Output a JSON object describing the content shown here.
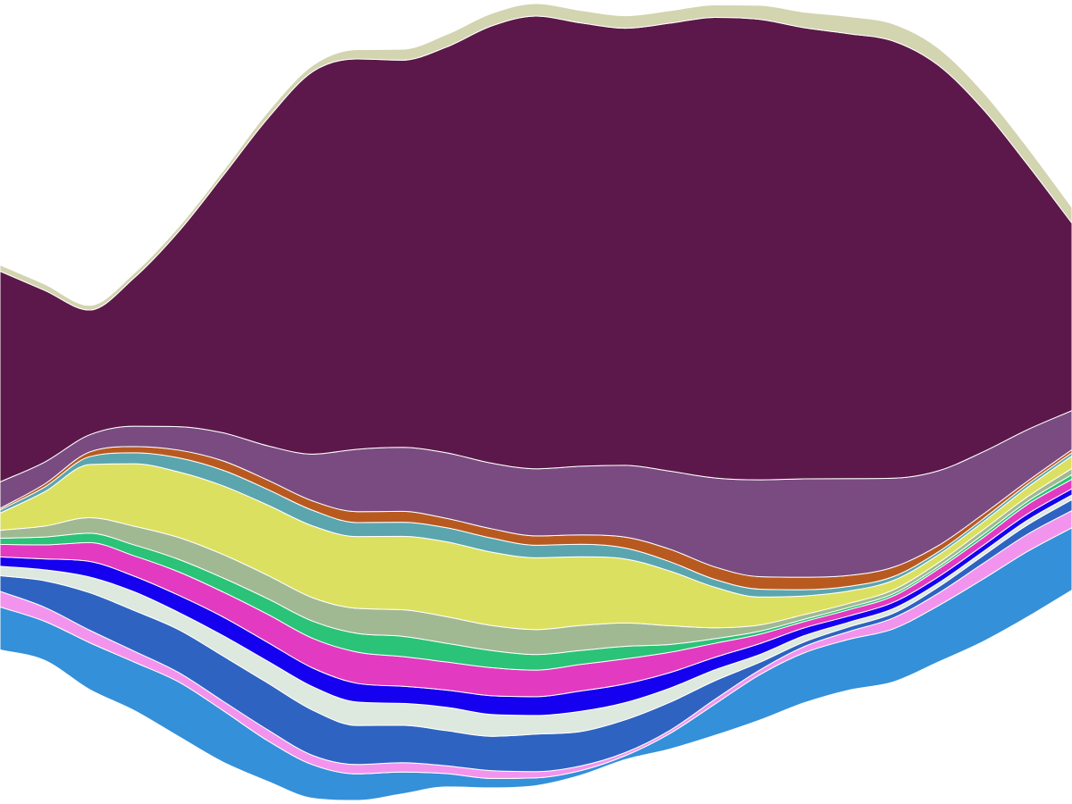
{
  "chart_data": {
    "type": "area",
    "subtype": "streamgraph",
    "baseline": "wiggle",
    "curve": "smooth",
    "title": "",
    "xlabel": "",
    "ylabel": "",
    "axes_visible": false,
    "grid": false,
    "legend": "none",
    "x": [
      0,
      1,
      2,
      3,
      4,
      5,
      6,
      7,
      8,
      9,
      10,
      11,
      12,
      13,
      14,
      15,
      16,
      17,
      18,
      19,
      20,
      21,
      22,
      23,
      24
    ],
    "series": [
      {
        "color": "#3490d9",
        "values": [
          55,
          50,
          60,
          62,
          70,
          66,
          52,
          43,
          34,
          28,
          17,
          12,
          10,
          6,
          5,
          20,
          40,
          58,
          64,
          65,
          68,
          72,
          80,
          84,
          80
        ]
      },
      {
        "color": "#f294ee",
        "values": [
          20,
          18,
          16,
          14,
          12,
          12,
          14,
          12,
          12,
          12,
          10,
          10,
          8,
          6,
          4,
          4,
          6,
          6,
          8,
          10,
          14,
          16,
          20,
          22,
          22
        ]
      },
      {
        "color": "#2e63c2",
        "values": [
          20,
          34,
          48,
          52,
          55,
          58,
          60,
          58,
          50,
          48,
          45,
          44,
          48,
          44,
          42,
          36,
          24,
          10,
          6,
          6,
          6,
          8,
          10,
          12,
          14
        ]
      },
      {
        "color": "#dde8df",
        "values": [
          12,
          14,
          20,
          24,
          22,
          26,
          28,
          30,
          30,
          28,
          30,
          28,
          24,
          26,
          22,
          18,
          14,
          10,
          8,
          6,
          6,
          5,
          5,
          6,
          6
        ]
      },
      {
        "color": "#1500ef",
        "values": [
          12,
          14,
          20,
          20,
          22,
          24,
          24,
          24,
          24,
          22,
          22,
          24,
          24,
          26,
          24,
          20,
          16,
          14,
          10,
          8,
          8,
          8,
          8,
          8,
          8
        ]
      },
      {
        "color": "#e23ac0",
        "values": [
          16,
          18,
          24,
          26,
          30,
          32,
          36,
          38,
          40,
          38,
          36,
          36,
          34,
          34,
          32,
          26,
          18,
          12,
          8,
          8,
          8,
          10,
          10,
          12,
          12
        ]
      },
      {
        "color": "#2bc377",
        "values": [
          8,
          10,
          12,
          14,
          16,
          18,
          20,
          22,
          24,
          26,
          24,
          22,
          20,
          18,
          16,
          10,
          6,
          4,
          3,
          3,
          3,
          3,
          4,
          4,
          6
        ]
      },
      {
        "color": "#a0b993",
        "values": [
          10,
          14,
          20,
          24,
          28,
          30,
          30,
          30,
          32,
          34,
          34,
          32,
          32,
          32,
          30,
          24,
          14,
          8,
          6,
          5,
          5,
          5,
          6,
          6,
          8
        ]
      },
      {
        "color": "#dce060",
        "values": [
          22,
          44,
          68,
          80,
          84,
          88,
          90,
          92,
          92,
          94,
          96,
          94,
          92,
          88,
          82,
          70,
          52,
          36,
          24,
          16,
          12,
          10,
          10,
          12,
          16
        ]
      },
      {
        "color": "#5ba5af",
        "values": [
          4,
          6,
          10,
          14,
          18,
          20,
          20,
          20,
          18,
          18,
          18,
          18,
          16,
          16,
          14,
          12,
          10,
          10,
          8,
          6,
          5,
          4,
          4,
          4,
          4
        ]
      },
      {
        "color": "#b85a20",
        "values": [
          2,
          4,
          6,
          8,
          10,
          12,
          12,
          12,
          14,
          14,
          12,
          12,
          12,
          12,
          14,
          16,
          16,
          16,
          16,
          14,
          12,
          8,
          6,
          4,
          4
        ]
      },
      {
        "color": "#7a4b81",
        "values": [
          34,
          28,
          22,
          26,
          30,
          36,
          44,
          60,
          80,
          82,
          84,
          84,
          86,
          88,
          92,
          100,
          114,
          124,
          126,
          124,
          114,
          96,
          80,
          66,
          50
        ]
      },
      {
        "color": "#5c184a",
        "values": [
          270,
          220,
          160,
          190,
          250,
          330,
          420,
          490,
          500,
          496,
          520,
          560,
          580,
          568,
          560,
          574,
          590,
          590,
          578,
          570,
          560,
          520,
          440,
          340,
          240
        ]
      },
      {
        "color": "#d3d4b0",
        "values": [
          8,
          8,
          6,
          6,
          6,
          6,
          8,
          8,
          12,
          14,
          16,
          16,
          16,
          16,
          16,
          16,
          16,
          18,
          20,
          22,
          22,
          22,
          22,
          22,
          20
        ]
      }
    ]
  }
}
